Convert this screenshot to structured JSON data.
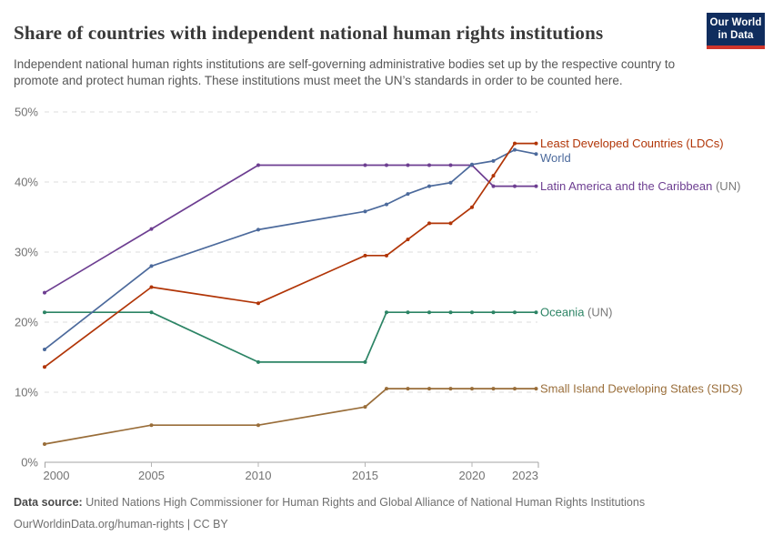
{
  "header": {
    "title": "Share of countries with independent national human rights institutions",
    "subtitle": "Independent national human rights institutions are self-governing administrative bodies set up by the respective country to promote and protect human rights. These institutions must meet the UN’s standards in order to be counted here."
  },
  "logo": {
    "line1": "Our World",
    "line2": "in Data",
    "bg_color": "#102d5e",
    "accent_color": "#d0352b"
  },
  "chart_data": {
    "type": "line",
    "x": [
      2000,
      2005,
      2010,
      2015,
      2016,
      2017,
      2018,
      2019,
      2020,
      2021,
      2022,
      2023
    ],
    "series": [
      {
        "name": "Least Developed Countries (LDCs)",
        "suffix": "",
        "color": "#b13507",
        "values": [
          13.6,
          25,
          22.7,
          29.5,
          29.5,
          31.8,
          34.1,
          34.1,
          36.4,
          40.9,
          45.5,
          45.5
        ]
      },
      {
        "name": "World",
        "suffix": "",
        "color": "#4c6a9c",
        "values": [
          16.1,
          28,
          33.2,
          35.8,
          36.8,
          38.3,
          39.4,
          39.9,
          42.5,
          43,
          44.6,
          44
        ]
      },
      {
        "name": "Latin America and the Caribbean",
        "suffix": " (UN)",
        "color": "#6d3e91",
        "values": [
          24.2,
          33.3,
          42.4,
          42.4,
          42.4,
          42.4,
          42.4,
          42.4,
          42.4,
          39.4,
          39.4,
          39.4
        ]
      },
      {
        "name": "Oceania",
        "suffix": " (UN)",
        "color": "#2c8465",
        "values": [
          21.4,
          21.4,
          14.3,
          14.3,
          21.4,
          21.4,
          21.4,
          21.4,
          21.4,
          21.4,
          21.4,
          21.4
        ]
      },
      {
        "name": "Small Island Developing States (SIDS)",
        "suffix": "",
        "color": "#996d39",
        "values": [
          2.6,
          5.3,
          5.3,
          7.9,
          10.5,
          10.5,
          10.5,
          10.5,
          10.5,
          10.5,
          10.5,
          10.5
        ]
      }
    ],
    "title": "Share of countries with independent national human rights institutions",
    "xlabel": "",
    "ylabel": "",
    "ylim": [
      0,
      50
    ],
    "yticks": [
      0,
      10,
      20,
      30,
      40,
      50
    ],
    "ytick_suffix": "%",
    "xticks": [
      2000,
      2005,
      2010,
      2015,
      2020,
      2023
    ],
    "grid": "dashed-horizontal",
    "legend_position": "right-of-line-ends",
    "suffix_color": "#7a7a7a",
    "axis_text_color": "#737373"
  },
  "footer": {
    "datasource_label": "Data source:",
    "datasource_text": " United Nations High Commissioner for Human Rights and Global Alliance of National Human Rights Institutions",
    "attribution": "OurWorldinData.org/human-rights | CC BY"
  }
}
